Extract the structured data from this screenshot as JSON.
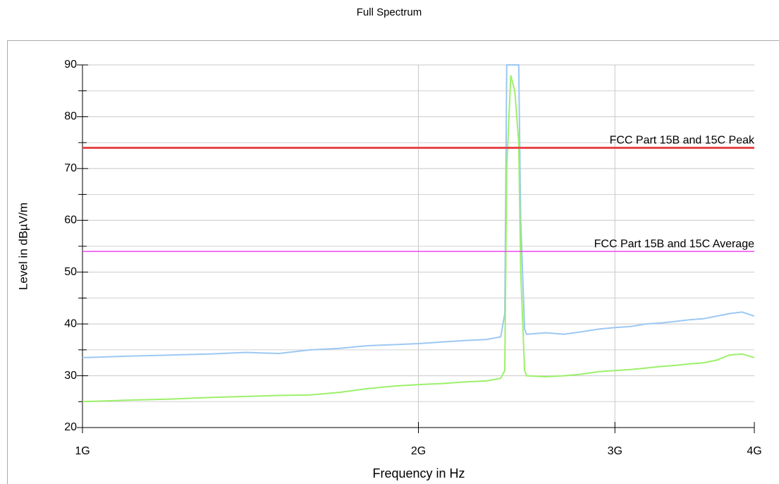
{
  "chart_data": {
    "type": "line",
    "title": "Full Spectrum",
    "xlabel": "Frequency in Hz",
    "ylabel": "Level in dBµV/m",
    "xscale": "log",
    "xlim": [
      1000000000.0,
      4000000000.0
    ],
    "xticks": [
      {
        "value": 1000000000.0,
        "label": "1G"
      },
      {
        "value": 2000000000.0,
        "label": "2G"
      },
      {
        "value": 3000000000.0,
        "label": "3G"
      },
      {
        "value": 4000000000.0,
        "label": "4G"
      }
    ],
    "ylim": [
      20,
      90
    ],
    "yticks": [
      20,
      30,
      40,
      50,
      60,
      70,
      80,
      90
    ],
    "minor_yticks": [
      25,
      35,
      45,
      55,
      65,
      75,
      85
    ],
    "grid": true,
    "x": [
      1000000000.0,
      1100000000.0,
      1200000000.0,
      1300000000.0,
      1400000000.0,
      1500000000.0,
      1600000000.0,
      1700000000.0,
      1800000000.0,
      1900000000.0,
      2000000000.0,
      2100000000.0,
      2200000000.0,
      2300000000.0,
      2370000000.0,
      2390000000.0,
      2400000000.0,
      2420000000.0,
      2440000000.0,
      2460000000.0,
      2470000000.0,
      2490000000.0,
      2500000000.0,
      2600000000.0,
      2700000000.0,
      2800000000.0,
      2900000000.0,
      3000000000.0,
      3100000000.0,
      3200000000.0,
      3300000000.0,
      3400000000.0,
      3500000000.0,
      3600000000.0,
      3700000000.0,
      3800000000.0,
      3900000000.0,
      4000000000.0
    ],
    "series": [
      {
        "color": "#9cc8f4",
        "values": [
          33.5,
          33.8,
          34,
          34.2,
          34.5,
          34.3,
          35,
          35.3,
          35.8,
          36,
          36.2,
          36.5,
          36.8,
          37,
          37.5,
          42,
          90,
          90,
          90,
          90,
          60,
          39,
          38,
          38.3,
          38,
          38.5,
          39,
          39.3,
          39.5,
          40,
          40.2,
          40.5,
          40.8,
          41,
          41.5,
          42,
          42.3,
          41.5
        ]
      },
      {
        "color": "#9cf06a",
        "values": [
          25,
          25.3,
          25.5,
          25.8,
          26,
          26.2,
          26.3,
          26.8,
          27.5,
          28,
          28.3,
          28.5,
          28.8,
          29,
          29.5,
          31,
          70,
          88,
          85,
          75,
          50,
          31,
          30,
          29.8,
          30,
          30.3,
          30.8,
          31,
          31.2,
          31.5,
          31.8,
          32,
          32.3,
          32.5,
          33,
          34,
          34.2,
          33.5
        ]
      }
    ],
    "limit_lines": [
      {
        "label": "FCC Part 15B and 15C Peak",
        "value": 74,
        "color": "#e8474a"
      },
      {
        "label": "FCC Part 15B and 15C Average",
        "value": 54,
        "color": "#ee44ee"
      }
    ]
  }
}
